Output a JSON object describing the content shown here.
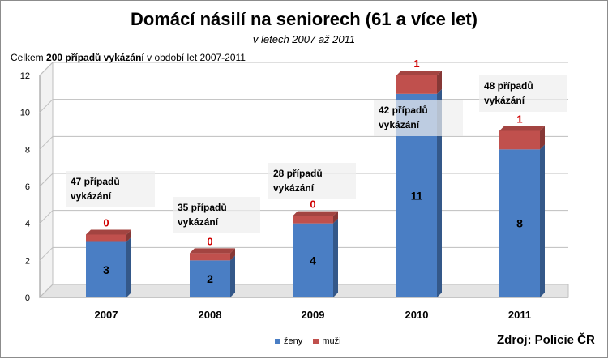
{
  "chart_data": {
    "type": "bar",
    "stacked": true,
    "title": "Domácí násilí na seniorech (61 a více let)",
    "subtitle": "v letech 2007 až 2011",
    "summary": {
      "prefix": "Celkem",
      "bold": "200 případů vykázání",
      "suffix": "v období let 2007-2011"
    },
    "categories": [
      "2007",
      "2008",
      "2009",
      "2010",
      "2011"
    ],
    "series": [
      {
        "name": "ženy",
        "values": [
          3,
          2,
          4,
          11,
          8
        ],
        "color": "#4a7ec4"
      },
      {
        "name": "muži",
        "values": [
          0,
          0,
          0,
          1,
          1
        ],
        "color": "#c0504d"
      }
    ],
    "annotations": [
      {
        "category": "2007",
        "line1": "47 případů",
        "line2": "vykázání"
      },
      {
        "category": "2008",
        "line1": "35 případů",
        "line2": "vykázání"
      },
      {
        "category": "2009",
        "line1": "28 případů",
        "line2": "vykázání"
      },
      {
        "category": "2010",
        "line1": "42 případů",
        "line2": "vykázání"
      },
      {
        "category": "2011",
        "line1": "48 případů",
        "line2": "vykázání"
      }
    ],
    "ylim": [
      0,
      12
    ],
    "yticks": [
      0,
      2,
      4,
      6,
      8,
      10,
      12
    ],
    "grid": true,
    "legend_position": "bottom",
    "source": "Zdroj: Policie ČR"
  }
}
